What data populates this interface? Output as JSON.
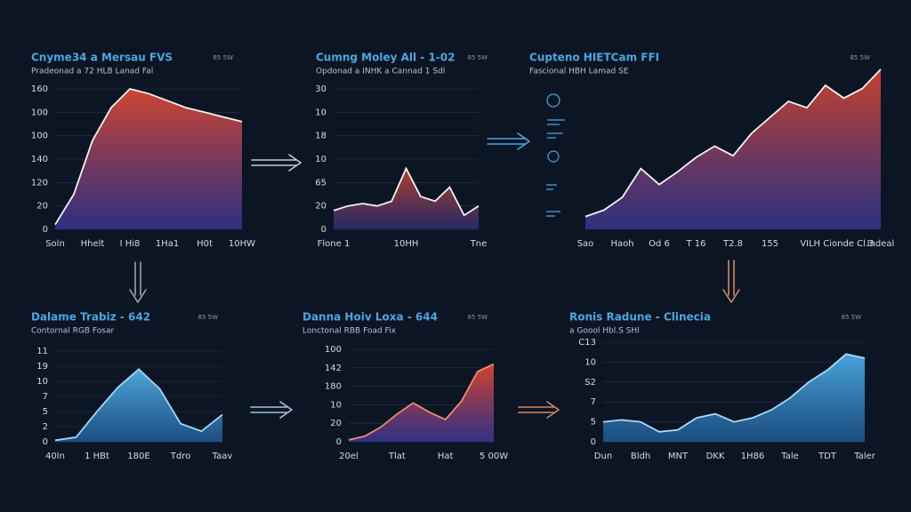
{
  "chart_data": [
    {
      "type": "area",
      "title": "Cnyme34 a Mersau FVS",
      "subtitle": "Pradeonad a 72 HLB Lanad Fal",
      "badge": "85 5W",
      "categories": [
        "Soln",
        null,
        "Hhelt",
        null,
        "I Hi8",
        null,
        "1Ha1",
        null,
        "H0t",
        null,
        "10HW"
      ],
      "values": [
        0.2,
        1.5,
        3.8,
        5.2,
        6.0,
        5.8,
        5.5,
        5.2,
        5.0,
        4.8,
        4.6
      ],
      "color": "#f2f2f2",
      "fill": [
        "#cf4530",
        "#34348f"
      ],
      "grid": true,
      "ylim": [
        0,
        6
      ],
      "yticks": [
        {
          "value": 0,
          "label": "0"
        },
        {
          "value": 1,
          "label": "20"
        },
        {
          "value": 2,
          "label": "120"
        },
        {
          "value": 3,
          "label": "140"
        },
        {
          "value": 4,
          "label": "100"
        },
        {
          "value": 5,
          "label": "100"
        },
        {
          "value": 6,
          "label": "160"
        }
      ]
    },
    {
      "type": "area",
      "title": "Cumng Moley All - 1-02",
      "subtitle": "Opdonad a INHK a Cannad 1 Sdl",
      "badge": "85 5W",
      "categories": [
        "Flone 1",
        null,
        null,
        null,
        null,
        "10HH",
        null,
        null,
        null,
        null,
        "Tne"
      ],
      "values": [
        0.8,
        1.0,
        1.1,
        1.0,
        1.2,
        2.6,
        1.4,
        1.2,
        1.8,
        0.6,
        1.0
      ],
      "color": "#f2f2f2",
      "fill": [
        "#b4402e",
        "#2a2c6e"
      ],
      "grid": true,
      "ylim": [
        0,
        6
      ],
      "yticks": [
        {
          "value": 0,
          "label": "0"
        },
        {
          "value": 1,
          "label": "20"
        },
        {
          "value": 2,
          "label": "65"
        },
        {
          "value": 3,
          "label": "10"
        },
        {
          "value": 4,
          "label": "18"
        },
        {
          "value": 5,
          "label": "10"
        },
        {
          "value": 6,
          "label": "30"
        }
      ]
    },
    {
      "type": "area",
      "title": "Cupteno HIETCam FFI",
      "subtitle": "Fascional HBH Lamad SE",
      "badge": "85 5W",
      "categories": [
        "Sao",
        null,
        "Haoh",
        null,
        "Od 6",
        null,
        "T 16",
        null,
        "T2.8",
        null,
        "155",
        null,
        "VIL",
        null,
        "H Cionde Cl.3",
        null,
        "Indeal"
      ],
      "values": [
        0.8,
        1.2,
        2.0,
        3.8,
        2.8,
        3.6,
        4.5,
        5.2,
        4.6,
        6.0,
        7.0,
        8.0,
        7.6,
        9.0,
        8.2,
        8.8,
        10.0
      ],
      "color": "#f2f2f2",
      "fill": [
        "#c8402c",
        "#33368f"
      ],
      "grid": false,
      "ylim": [
        0,
        10
      ],
      "yticks": []
    },
    {
      "type": "area",
      "title": "Dalame Trabiz - 642",
      "subtitle": "Contornal RGB Fosar",
      "badge": "85 5W",
      "categories": [
        "40ln",
        null,
        "1 HBt",
        null,
        "180E",
        null,
        "Tdro",
        null,
        "Taav"
      ],
      "values": [
        0.1,
        0.3,
        2.0,
        3.6,
        4.8,
        3.5,
        1.2,
        0.7,
        1.8
      ],
      "color": "#9fd6f5",
      "fill": [
        "#4fa7dc",
        "#1f5a93"
      ],
      "grid": true,
      "ylim": [
        0,
        6
      ],
      "yticks": [
        {
          "value": 0,
          "label": "0"
        },
        {
          "value": 1,
          "label": "2"
        },
        {
          "value": 2,
          "label": "5"
        },
        {
          "value": 3,
          "label": "7"
        },
        {
          "value": 4,
          "label": "10"
        },
        {
          "value": 5,
          "label": "19"
        },
        {
          "value": 6,
          "label": "11"
        }
      ]
    },
    {
      "type": "area",
      "title": "Danna Hoiv Loxa - 644",
      "subtitle": "Lonctonal RBB Foad Fix",
      "badge": "85 5W",
      "categories": [
        "20el",
        null,
        null,
        "Tlat",
        null,
        null,
        "Hat",
        null,
        null,
        "5 00W"
      ],
      "values": [
        0.1,
        0.3,
        0.8,
        1.5,
        2.1,
        1.6,
        1.2,
        2.2,
        3.8,
        4.2
      ],
      "color": "#f08a70",
      "fill": [
        "#d4432c",
        "#3a3592"
      ],
      "grid": true,
      "ylim": [
        0,
        5
      ],
      "yticks": [
        {
          "value": 0,
          "label": "0"
        },
        {
          "value": 1,
          "label": "20"
        },
        {
          "value": 2,
          "label": "10"
        },
        {
          "value": 3,
          "label": "180"
        },
        {
          "value": 4,
          "label": "142"
        },
        {
          "value": 5,
          "label": "100"
        }
      ]
    },
    {
      "type": "area",
      "title": "Ronis Radune - Clinecia",
      "subtitle": "a Goool Hbl.S SHl",
      "badge": "85 5W",
      "categories": [
        "Dun",
        null,
        "Bldh",
        null,
        "MNT",
        null,
        "DKK",
        null,
        "1H86",
        null,
        "Tale",
        null,
        "TDT",
        null,
        "Taler"
      ],
      "values": [
        1.0,
        1.1,
        1.0,
        0.5,
        0.6,
        1.2,
        1.4,
        1.0,
        1.2,
        1.6,
        2.2,
        3.0,
        3.6,
        4.4,
        4.2
      ],
      "color": "#a8dcf7",
      "fill": [
        "#4aa4da",
        "#1d5790"
      ],
      "grid": true,
      "ylim": [
        0,
        5
      ],
      "yticks": [
        {
          "value": 0,
          "label": "0"
        },
        {
          "value": 1,
          "label": "5"
        },
        {
          "value": 2,
          "label": "7"
        },
        {
          "value": 3,
          "label": "S2"
        },
        {
          "value": 4,
          "label": "10"
        },
        {
          "value": 5,
          "label": "C13"
        }
      ]
    }
  ]
}
